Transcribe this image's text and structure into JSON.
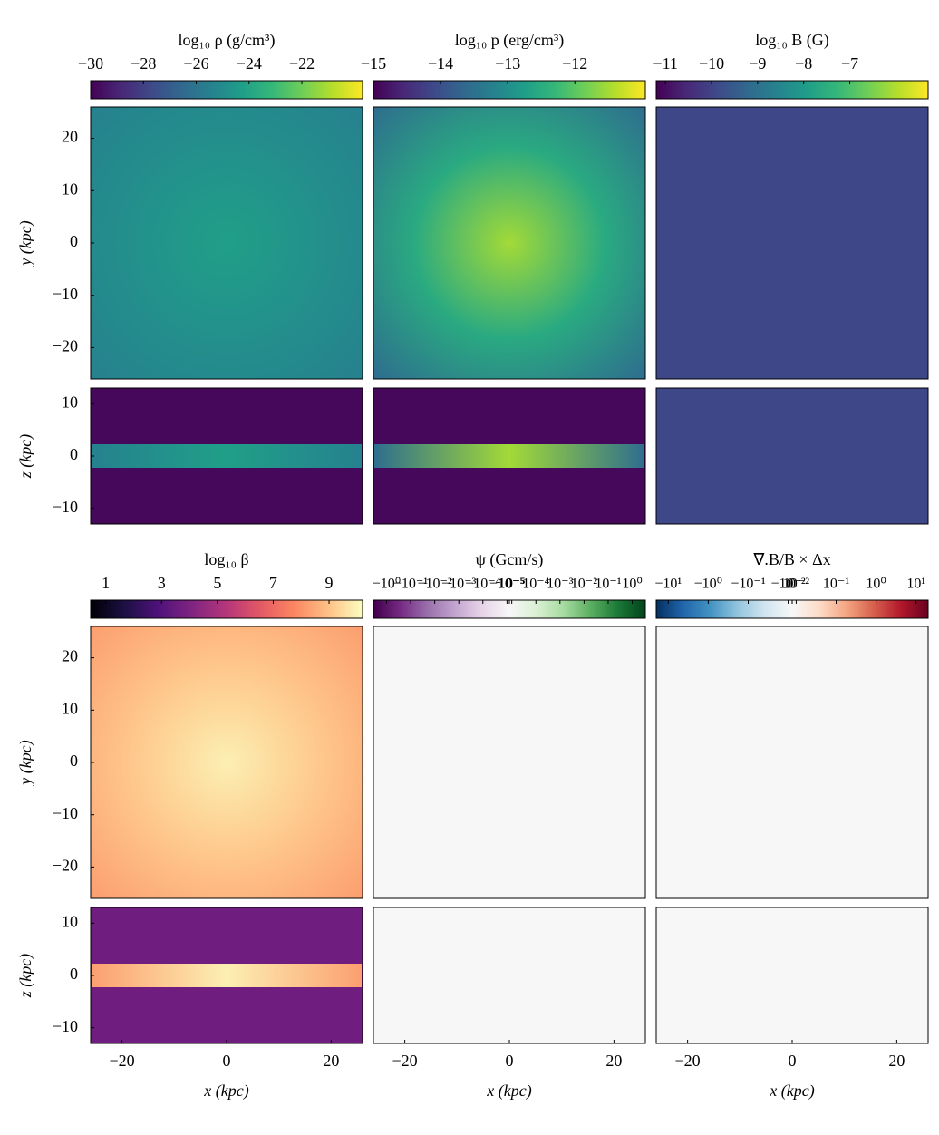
{
  "chart_data": [
    {
      "type": "heatmap",
      "title": "log₁₀ ρ (g/cm³)",
      "scale": "linear",
      "clim": [
        -30,
        -19.7
      ],
      "cticks": [
        {
          "value": -30,
          "label": "−30"
        },
        {
          "value": -28,
          "label": "−28"
        },
        {
          "value": -26,
          "label": "−26"
        },
        {
          "value": -24,
          "label": "−24"
        },
        {
          "value": -22,
          "label": "−22"
        }
      ],
      "colormap": [
        "#440154",
        "#482878",
        "#3e4989",
        "#31688e",
        "#26828e",
        "#1f9e89",
        "#35b779",
        "#6ece58",
        "#b5de2b",
        "#fde725"
      ],
      "ylabel": "y (kpc)",
      "ylim": [
        -26,
        26
      ],
      "yticks": [
        {
          "value": -20,
          "label": "−20"
        },
        {
          "value": -10,
          "label": "−10"
        },
        0,
        10,
        20
      ],
      "zlabel": "z (kpc)",
      "zlim": [
        -13,
        13
      ],
      "zticks": [
        {
          "value": -10,
          "label": "−10"
        },
        0,
        10
      ]
    },
    {
      "type": "heatmap",
      "title": "log₁₀ p (erg/cm³)",
      "scale": "linear",
      "clim": [
        -15,
        -10.95
      ],
      "cticks": [
        {
          "value": -15,
          "label": "−15"
        },
        {
          "value": -14,
          "label": "−14"
        },
        {
          "value": -13,
          "label": "−13"
        },
        {
          "value": -12,
          "label": "−12"
        }
      ],
      "colormap": [
        "#440154",
        "#482878",
        "#3e4989",
        "#31688e",
        "#26828e",
        "#1f9e89",
        "#35b779",
        "#6ece58",
        "#b5de2b",
        "#fde725"
      ]
    },
    {
      "type": "heatmap",
      "title": "log₁₀ B (G)",
      "scale": "linear",
      "clim": [
        -11.2,
        -5.3
      ],
      "cticks": [
        {
          "value": -11,
          "label": "−11"
        },
        {
          "value": -10,
          "label": "−10"
        },
        {
          "value": -9,
          "label": "−9"
        },
        {
          "value": -8,
          "label": "−8"
        },
        {
          "value": -7,
          "label": "−7"
        }
      ],
      "colormap": [
        "#440154",
        "#482878",
        "#3e4989",
        "#31688e",
        "#26828e",
        "#1f9e89",
        "#35b779",
        "#6ece58",
        "#b5de2b",
        "#fde725"
      ]
    },
    {
      "type": "heatmap",
      "title": "log₁₀ β",
      "scale": "linear",
      "clim": [
        0.46,
        10.2
      ],
      "cticks": [
        1,
        3,
        5,
        7,
        9
      ],
      "colormap": [
        "#000004",
        "#1c1044",
        "#4f127b",
        "#812581",
        "#b5367a",
        "#e55964",
        "#fb8761",
        "#fec287",
        "#fcfdbf"
      ],
      "ylabel": "y (kpc)",
      "ylim": [
        -26,
        26
      ],
      "yticks": [
        {
          "value": -20,
          "label": "−20"
        },
        {
          "value": -10,
          "label": "−10"
        },
        0,
        10,
        20
      ],
      "zlabel": "z (kpc)",
      "zlim": [
        -13,
        13
      ],
      "zticks": [
        {
          "value": -10,
          "label": "−10"
        },
        0,
        10
      ],
      "xlabel": "x (kpc)",
      "xlim": [
        -26,
        26
      ],
      "xticks": [
        {
          "value": -20,
          "label": "−20"
        },
        0,
        20
      ]
    },
    {
      "type": "heatmap",
      "title": "ψ (Gcm/s)",
      "scale": "symlog",
      "linthresh": 1e-05,
      "linscale": 0.1,
      "clim": [
        -3.5,
        3.5
      ],
      "cticks": [
        {
          "value": -1,
          "label": "−10⁰"
        },
        {
          "value": -0.1,
          "label": "−10⁻¹"
        },
        {
          "value": -0.01,
          "label": "−10⁻²"
        },
        {
          "value": -0.001,
          "label": "−10⁻³"
        },
        {
          "value": -0.0001,
          "label": "−10⁻⁴"
        },
        {
          "value": -1e-05,
          "label": "−10⁻⁵"
        },
        0,
        {
          "value": 1e-05,
          "label": "10⁻⁵"
        },
        {
          "value": 0.0001,
          "label": "10⁻⁴"
        },
        {
          "value": 0.001,
          "label": "10⁻³"
        },
        {
          "value": 0.01,
          "label": "10⁻²"
        },
        {
          "value": 0.1,
          "label": "10⁻¹"
        },
        {
          "value": 1,
          "label": "10⁰"
        }
      ],
      "colormap": [
        "#40004b",
        "#762a83",
        "#9970ab",
        "#c2a5cf",
        "#e7d4e8",
        "#f7f7f7",
        "#d9f0d3",
        "#a6dba0",
        "#5aae61",
        "#1b7837",
        "#00441b"
      ],
      "xlabel": "x (kpc)",
      "xlim": [
        -26,
        26
      ],
      "xticks": [
        {
          "value": -20,
          "label": "−20"
        },
        0,
        20
      ]
    },
    {
      "type": "heatmap",
      "title": "∇.B/B × Δx",
      "scale": "symlog",
      "linthresh": 0.01,
      "linscale": 0.1,
      "clim": [
        -20,
        20
      ],
      "cticks": [
        {
          "value": -10,
          "label": "−10¹"
        },
        {
          "value": -1,
          "label": "−10⁰"
        },
        {
          "value": -0.1,
          "label": "−10⁻¹"
        },
        {
          "value": -0.01,
          "label": "−10⁻²"
        },
        0,
        {
          "value": 0.01,
          "label": "10⁻²"
        },
        {
          "value": 0.1,
          "label": "10⁻¹"
        },
        {
          "value": 1,
          "label": "10⁰"
        },
        {
          "value": 10,
          "label": "10¹"
        }
      ],
      "colormap": [
        "#053061",
        "#2166ac",
        "#4393c3",
        "#92c5de",
        "#d1e5f0",
        "#f7f7f7",
        "#fddbc7",
        "#f4a582",
        "#d6604d",
        "#b2182b",
        "#67001f"
      ],
      "xlabel": "x (kpc)",
      "xlim": [
        -26,
        26
      ],
      "xticks": [
        {
          "value": -20,
          "label": "−20"
        },
        0,
        20
      ]
    }
  ]
}
